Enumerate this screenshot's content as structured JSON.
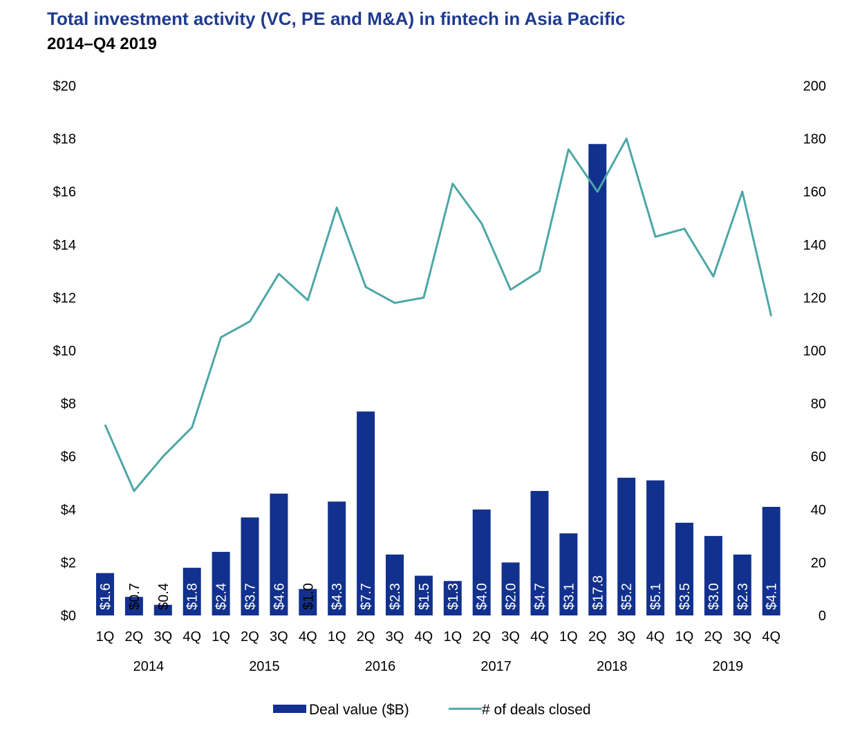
{
  "chart_data": {
    "type": "bar+line",
    "title": "Total investment activity (VC, PE and M&A) in fintech in Asia Pacific",
    "subtitle": "2014–Q4 2019",
    "quarters": [
      "1Q",
      "2Q",
      "3Q",
      "4Q",
      "1Q",
      "2Q",
      "3Q",
      "4Q",
      "1Q",
      "2Q",
      "3Q",
      "4Q",
      "1Q",
      "2Q",
      "3Q",
      "4Q",
      "1Q",
      "2Q",
      "3Q",
      "4Q",
      "1Q",
      "2Q",
      "3Q",
      "4Q"
    ],
    "years": [
      "2014",
      "2015",
      "2016",
      "2017",
      "2018",
      "2019"
    ],
    "y_left": {
      "ticks": [
        "$0",
        "$2",
        "$4",
        "$6",
        "$8",
        "$10",
        "$12",
        "$14",
        "$16",
        "$18",
        "$20"
      ],
      "range": [
        0,
        20
      ]
    },
    "y_right": {
      "ticks": [
        "0",
        "20",
        "40",
        "60",
        "80",
        "100",
        "120",
        "140",
        "160",
        "180",
        "200"
      ],
      "range": [
        0,
        200
      ]
    },
    "series": [
      {
        "name": "Deal value ($B)",
        "kind": "bar",
        "color": "#12318f",
        "values": [
          1.6,
          0.7,
          0.4,
          1.8,
          2.4,
          3.7,
          4.6,
          1.0,
          4.3,
          7.7,
          2.3,
          1.5,
          1.3,
          4.0,
          2.0,
          4.7,
          3.1,
          17.8,
          5.2,
          5.1,
          3.5,
          3.0,
          2.3,
          4.1
        ],
        "labels": [
          "$1.6",
          "$0.7",
          "$0.4",
          "$1.8",
          "$2.4",
          "$3.7",
          "$4.6",
          "$1.0",
          "$4.3",
          "$7.7",
          "$2.3",
          "$1.5",
          "$1.3",
          "$4.0",
          "$2.0",
          "$4.7",
          "$3.1",
          "$17.8",
          "$5.2",
          "$5.1",
          "$3.5",
          "$3.0",
          "$2.3",
          "$4.1"
        ]
      },
      {
        "name": "# of deals closed",
        "kind": "line",
        "axis": "right",
        "color": "#4ca6a6",
        "values": [
          72,
          47,
          60,
          71,
          105,
          111,
          129,
          119,
          154,
          124,
          118,
          120,
          163,
          148,
          123,
          130,
          176,
          160,
          180,
          143,
          146,
          128,
          160,
          113
        ]
      }
    ],
    "legend_position": "bottom-center",
    "grid": false
  }
}
